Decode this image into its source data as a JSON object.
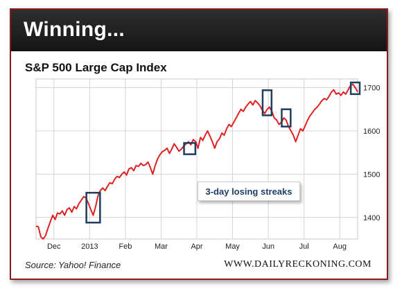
{
  "banner": {
    "title": "Winning..."
  },
  "chart_data": {
    "type": "line",
    "title": "S&P 500 Large Cap Index",
    "x_tick_labels": [
      "Dec",
      "2013",
      "Feb",
      "Mar",
      "Apr",
      "May",
      "Jun",
      "Jul",
      "Aug"
    ],
    "y_ticks": [
      1400,
      1500,
      1600,
      1700
    ],
    "ylim": [
      1350,
      1720
    ],
    "grid": true,
    "y_axis_side": "right",
    "series": [
      {
        "color": "#e02020",
        "values": [
          1380,
          1378,
          1355,
          1350,
          1358,
          1375,
          1390,
          1405,
          1395,
          1410,
          1408,
          1415,
          1405,
          1418,
          1422,
          1412,
          1425,
          1420,
          1432,
          1440,
          1448,
          1445,
          1432,
          1418,
          1405,
          1425,
          1450,
          1462,
          1468,
          1462,
          1472,
          1480,
          1478,
          1488,
          1495,
          1492,
          1500,
          1505,
          1498,
          1512,
          1515,
          1508,
          1520,
          1518,
          1525,
          1520,
          1522,
          1528,
          1515,
          1500,
          1520,
          1535,
          1545,
          1552,
          1555,
          1560,
          1548,
          1558,
          1570,
          1562,
          1553,
          1558,
          1565,
          1570,
          1575,
          1568,
          1580,
          1575,
          1560,
          1585,
          1578,
          1590,
          1600,
          1588,
          1575,
          1560,
          1575,
          1582,
          1595,
          1590,
          1605,
          1615,
          1610,
          1620,
          1630,
          1640,
          1650,
          1645,
          1655,
          1662,
          1668,
          1660,
          1670,
          1665,
          1658,
          1648,
          1640,
          1650,
          1655,
          1645,
          1630,
          1625,
          1615,
          1620,
          1630,
          1625,
          1610,
          1600,
          1590,
          1575,
          1590,
          1605,
          1600,
          1612,
          1625,
          1635,
          1642,
          1650,
          1655,
          1662,
          1670,
          1675,
          1672,
          1680,
          1690,
          1695,
          1685,
          1688,
          1682,
          1690,
          1685,
          1695,
          1705,
          1708,
          1700,
          1690
        ]
      }
    ],
    "highlight_boxes": [
      {
        "x_range": [
          22,
          26
        ],
        "y_range": [
          1388,
          1457
        ]
      },
      {
        "x_range": [
          63,
          66
        ],
        "y_range": [
          1546,
          1572
        ]
      },
      {
        "x_range": [
          96,
          98
        ],
        "y_range": [
          1636,
          1694
        ]
      },
      {
        "x_range": [
          104,
          106
        ],
        "y_range": [
          1610,
          1650
        ]
      },
      {
        "x_range": [
          133,
          135
        ],
        "y_range": [
          1685,
          1712
        ]
      }
    ],
    "annotation": "3-day losing streaks"
  },
  "footer": {
    "source": "Source: Yahoo! Finance",
    "site": "WWW.DAILYRECKONING.COM"
  }
}
